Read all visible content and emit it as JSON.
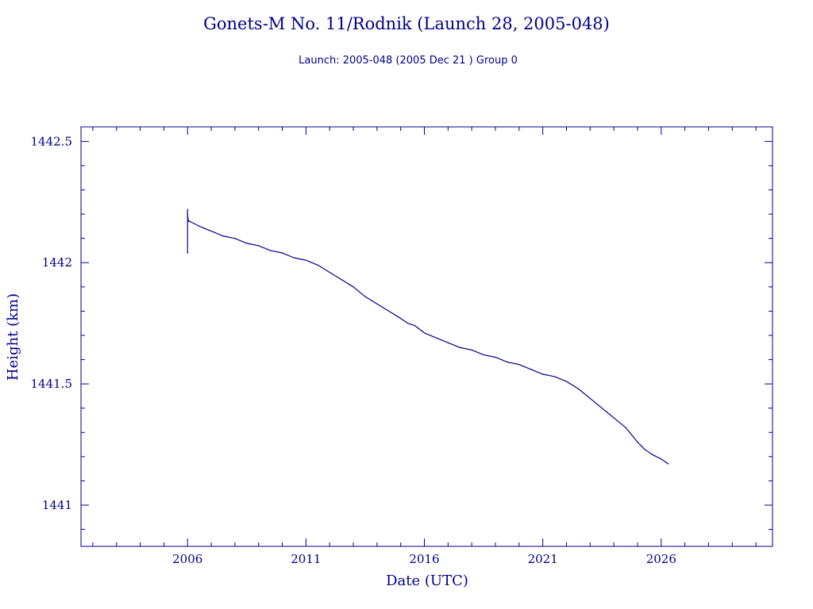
{
  "chart_data": {
    "type": "line",
    "title": "Gonets-M No. 11/Rodnik (Launch 28, 2005-048)",
    "subtitle": "Launch: 2005-048  (2005 Dec 21 )  Group 0",
    "xlabel": "Date (UTC)",
    "ylabel": "Height (km)",
    "xlim": [
      2001.5,
      2030.7
    ],
    "ylim": [
      1440.83,
      1442.56
    ],
    "x_ticks": [
      "2006",
      "2011",
      "2016",
      "2021",
      "2026"
    ],
    "x_tick_values": [
      2006,
      2011,
      2016,
      2021,
      2026
    ],
    "y_ticks": [
      "1441",
      "1441.5",
      "1442",
      "1442.5"
    ],
    "y_tick_values": [
      1441,
      1441.5,
      1442,
      1442.5
    ],
    "grid": false,
    "color": "#00008b",
    "series": [
      {
        "x": [
          2006.0,
          2006.0,
          2006.0,
          2006.02,
          2006.05,
          2006.1,
          2006.5,
          2007.0,
          2007.5,
          2008.0,
          2008.5,
          2009.0,
          2009.5,
          2010.0,
          2010.5,
          2011.0,
          2011.5,
          2012.0,
          2012.5,
          2013.0,
          2013.5,
          2014.0,
          2014.5,
          2015.0,
          2015.3,
          2015.6,
          2016.0,
          2016.5,
          2017.0,
          2017.5,
          2018.0,
          2018.5,
          2019.0,
          2019.5,
          2020.0,
          2020.5,
          2021.0,
          2021.5,
          2022.0,
          2022.5,
          2023.0,
          2023.5,
          2024.0,
          2024.5,
          2025.0,
          2025.3,
          2025.6,
          2026.0,
          2026.3
        ],
        "y": [
          1442.22,
          1442.04,
          1442.2,
          1442.18,
          1442.17,
          1442.17,
          1442.15,
          1442.13,
          1442.11,
          1442.1,
          1442.08,
          1442.07,
          1442.05,
          1442.04,
          1442.02,
          1442.01,
          1441.99,
          1441.96,
          1441.93,
          1441.9,
          1441.86,
          1441.83,
          1441.8,
          1441.77,
          1441.75,
          1441.74,
          1441.71,
          1441.69,
          1441.67,
          1441.65,
          1441.64,
          1441.62,
          1441.61,
          1441.59,
          1441.58,
          1441.56,
          1441.54,
          1441.53,
          1441.51,
          1441.48,
          1441.44,
          1441.4,
          1441.36,
          1441.32,
          1441.26,
          1441.23,
          1441.21,
          1441.19,
          1441.17
        ]
      }
    ]
  }
}
